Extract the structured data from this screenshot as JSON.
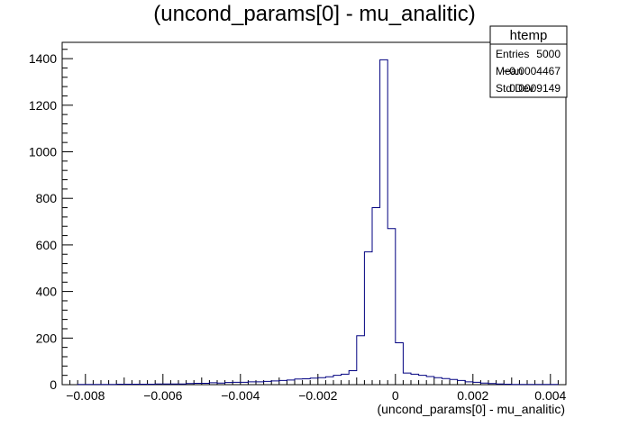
{
  "chart_data": {
    "type": "bar",
    "title": "(uncond_params[0] - mu_analitic)",
    "xlabel": "(uncond_params[0] - mu_analitic)",
    "ylabel": "",
    "xlim": [
      -0.0086,
      0.0044
    ],
    "ylim": [
      0,
      1470
    ],
    "grid": false,
    "line_color": "#000080",
    "x_ticks": [
      -0.008,
      -0.006,
      -0.004,
      -0.002,
      0,
      0.002,
      0.004
    ],
    "x_tick_labels": [
      "−0.008",
      "−0.006",
      "−0.004",
      "−0.002",
      "0",
      "0.002",
      "0.004"
    ],
    "y_ticks": [
      0,
      200,
      400,
      600,
      800,
      1000,
      1200,
      1400
    ],
    "y_tick_labels": [
      "0",
      "200",
      "400",
      "600",
      "800",
      "1000",
      "1200",
      "1400"
    ],
    "bin_edges": [
      -0.0082,
      -0.0072,
      -0.0062,
      -0.0054,
      -0.0052,
      -0.005,
      -0.0048,
      -0.0046,
      -0.0044,
      -0.0042,
      -0.004,
      -0.0038,
      -0.0036,
      -0.0034,
      -0.0032,
      -0.003,
      -0.0028,
      -0.0026,
      -0.0024,
      -0.0022,
      -0.002,
      -0.0018,
      -0.0016,
      -0.0014,
      -0.0012,
      -0.001,
      -0.0008,
      -0.0006,
      -0.0004,
      -0.0002,
      0.0,
      0.0002,
      0.0004,
      0.0006,
      0.0008,
      0.001,
      0.0012,
      0.0014,
      0.0016,
      0.0018,
      0.002,
      0.0022,
      0.0024,
      0.0026,
      0.0028,
      0.003,
      0.0032,
      0.0038,
      0.0042
    ],
    "values": [
      1,
      2,
      3,
      5,
      6,
      6,
      8,
      7,
      9,
      10,
      10,
      12,
      12,
      14,
      16,
      18,
      20,
      24,
      25,
      28,
      30,
      34,
      40,
      45,
      60,
      210,
      570,
      760,
      1395,
      670,
      180,
      50,
      45,
      40,
      35,
      30,
      26,
      22,
      18,
      12,
      10,
      7,
      5,
      3,
      2,
      1,
      1,
      1
    ]
  },
  "stats_box": {
    "title": "htemp",
    "rows": [
      {
        "label": "Entries",
        "value": "5000"
      },
      {
        "label": "Mean",
        "value": "−0.0004467"
      },
      {
        "label": "Std Dev",
        "value": "0.0009149"
      }
    ]
  }
}
